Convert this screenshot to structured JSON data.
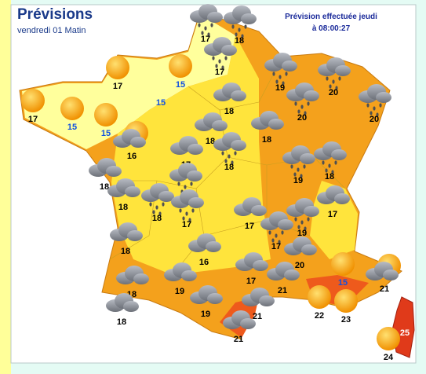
{
  "header": {
    "title": "Prévisions",
    "subtitle": "vendredi 01 Matin",
    "issued": "Prévision effectuée jeudi",
    "issued_time": "à 08:00:27"
  },
  "stations": [
    {
      "temperature": 17
    },
    {
      "temperature": 18
    },
    {
      "temperature": 17
    },
    {
      "temperature": 15
    },
    {
      "temperature": 17
    },
    {
      "temperature": 19
    },
    {
      "temperature": 20
    },
    {
      "temperature": 15
    },
    {
      "temperature": 17
    },
    {
      "temperature": 15
    },
    {
      "temperature": 15
    },
    {
      "temperature": 20
    },
    {
      "temperature": 20
    },
    {
      "temperature": 18
    },
    {
      "temperature": 18
    },
    {
      "temperature": 18
    },
    {
      "temperature": 16
    },
    {
      "temperature": 17
    },
    {
      "temperature": 18
    },
    {
      "temperature": 18
    },
    {
      "temperature": 19
    },
    {
      "temperature": 18
    },
    {
      "temperature": 17
    },
    {
      "temperature": 18
    },
    {
      "temperature": 18
    },
    {
      "temperature": 17
    },
    {
      "temperature": 17
    },
    {
      "temperature": 17
    },
    {
      "temperature": 19
    },
    {
      "temperature": 18
    },
    {
      "temperature": 17
    },
    {
      "temperature": 16
    },
    {
      "temperature": 20
    },
    {
      "temperature": 15
    },
    {
      "temperature": 17
    },
    {
      "temperature": 21
    },
    {
      "temperature": 21
    },
    {
      "temperature": 18
    },
    {
      "temperature": 19
    },
    {
      "temperature": 18
    },
    {
      "temperature": 19
    },
    {
      "temperature": 21
    },
    {
      "temperature": 22
    },
    {
      "temperature": 23
    },
    {
      "temperature": 21
    },
    {
      "temperature": 25
    },
    {
      "temperature": 24
    }
  ]
}
